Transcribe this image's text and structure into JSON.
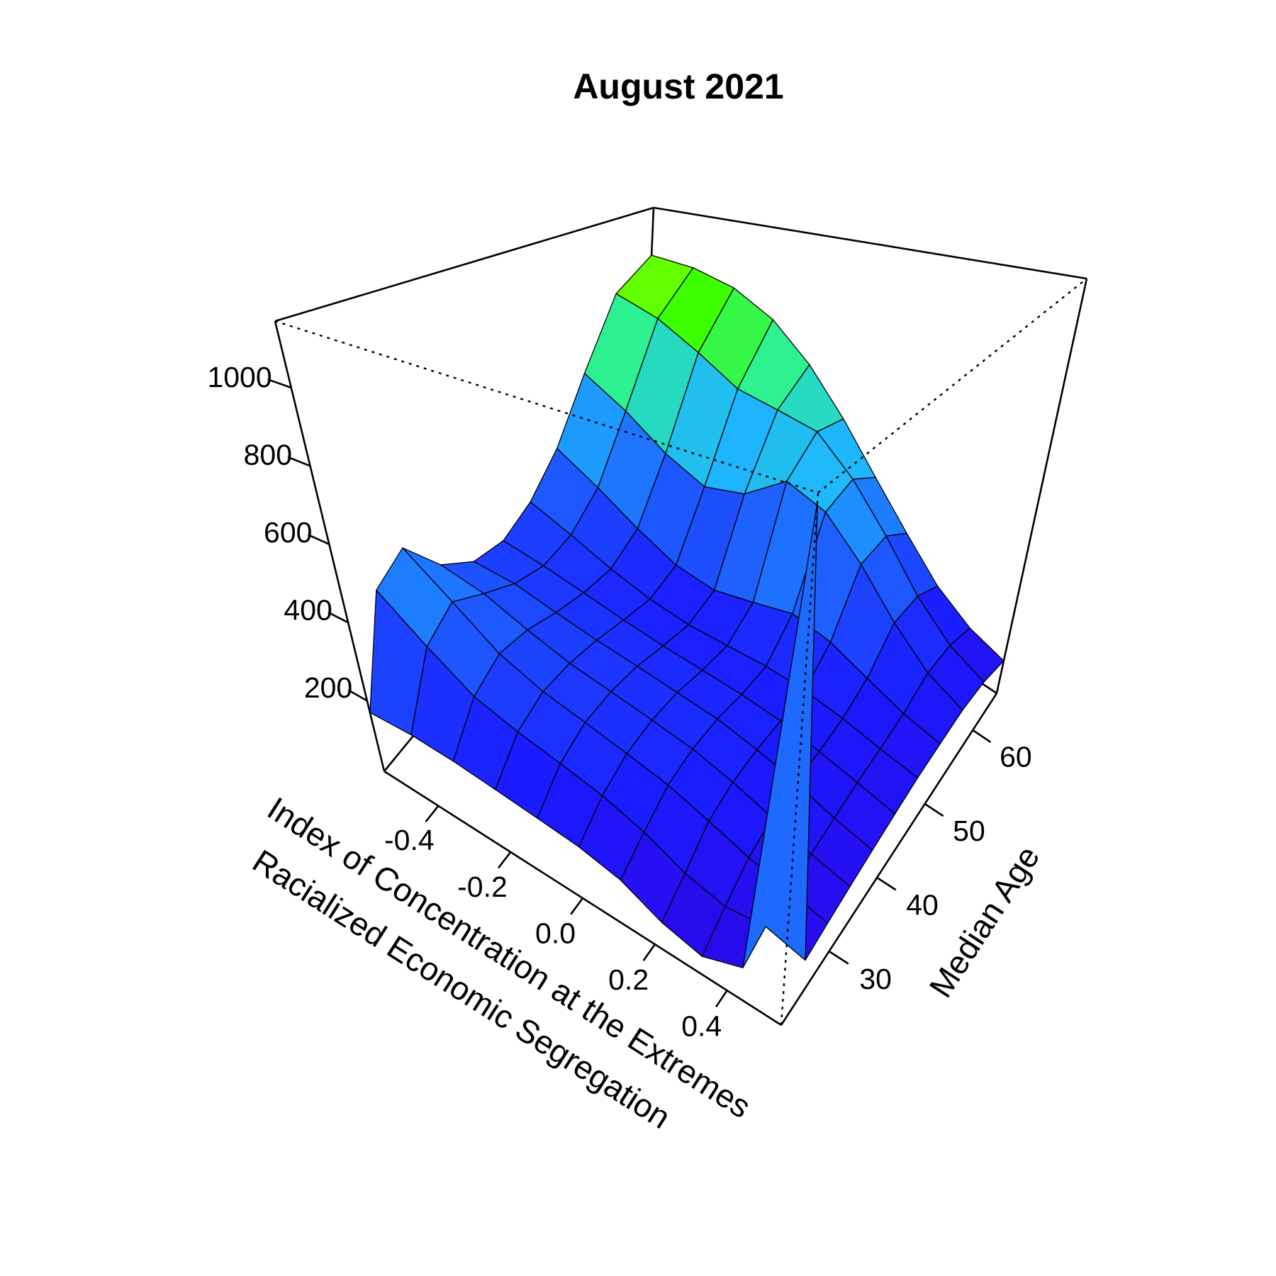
{
  "chart_data": {
    "type": "surface",
    "title": "August 2021",
    "xlabel": [
      "Index of Concentration at the Extremes",
      "Racialized Economic Segregation"
    ],
    "ylabel": "Median Age",
    "x": [
      -0.55,
      -0.44,
      -0.33,
      -0.22,
      -0.11,
      0,
      0.11,
      0.22,
      0.33,
      0.44,
      0.55
    ],
    "y": [
      20,
      24.5,
      29,
      33.5,
      38,
      42.5,
      47,
      51.5,
      56,
      60.5,
      65
    ],
    "z": [
      [
        170,
        175,
        170,
        160,
        150,
        140,
        120,
        80,
        60,
        90,
        1150
      ],
      [
        420,
        330,
        260,
        230,
        210,
        190,
        160,
        120,
        100,
        110,
        90
      ],
      [
        470,
        380,
        300,
        260,
        240,
        220,
        200,
        170,
        140,
        120,
        100
      ],
      [
        350,
        330,
        290,
        260,
        245,
        230,
        215,
        190,
        160,
        130,
        110
      ],
      [
        280,
        280,
        260,
        245,
        235,
        225,
        215,
        195,
        170,
        140,
        120
      ],
      [
        260,
        250,
        235,
        220,
        210,
        205,
        200,
        190,
        170,
        150,
        130
      ],
      [
        300,
        260,
        220,
        195,
        185,
        190,
        195,
        190,
        175,
        155,
        140
      ],
      [
        400,
        330,
        260,
        210,
        200,
        230,
        260,
        240,
        200,
        165,
        145
      ],
      [
        600,
        520,
        430,
        380,
        420,
        520,
        480,
        380,
        270,
        190,
        150
      ],
      [
        850,
        800,
        720,
        640,
        620,
        600,
        500,
        380,
        260,
        180,
        140
      ],
      [
        950,
        940,
        900,
        820,
        700,
        560,
        420,
        300,
        200,
        140,
        110
      ]
    ],
    "xlim": [
      -0.55,
      0.55
    ],
    "ylim": [
      20,
      65
    ],
    "zlim": [
      20,
      1170
    ],
    "xticks": [
      -0.4,
      -0.2,
      {
        "value": 0,
        "label": "0.0"
      },
      0.2,
      0.4
    ],
    "yticks": [
      30,
      40,
      50,
      60
    ],
    "zticks": [
      200,
      400,
      600,
      800,
      1000
    ],
    "colorscale": [
      "#3300dd",
      "#1a1aff",
      "#1e64ff",
      "#1eb4ff",
      "#2bf0a0",
      "#3cff00",
      "#c8ff00",
      "#ffff00"
    ]
  }
}
